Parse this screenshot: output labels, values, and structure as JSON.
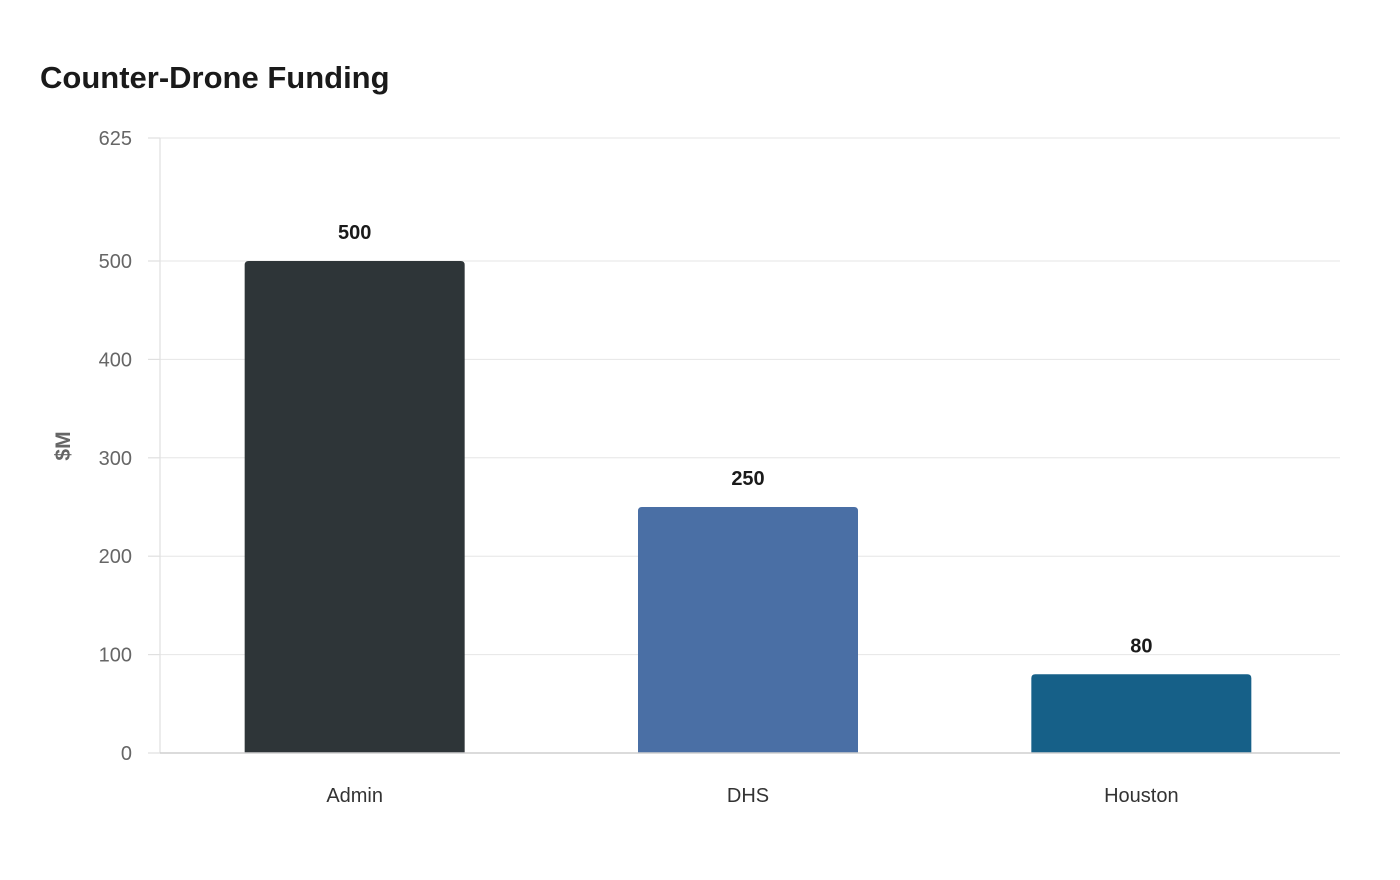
{
  "chart_data": {
    "type": "bar",
    "title": "Counter-Drone Funding",
    "xlabel": "",
    "ylabel": "$M",
    "categories": [
      "Admin",
      "DHS",
      "Houston"
    ],
    "values": [
      500,
      250,
      80
    ],
    "colors": [
      "#2e3538",
      "#4a6fa5",
      "#166088"
    ],
    "ylim": [
      0,
      625
    ],
    "yticks": [
      0,
      100,
      200,
      300,
      400,
      500,
      625
    ],
    "grid": true,
    "legend": "none"
  }
}
